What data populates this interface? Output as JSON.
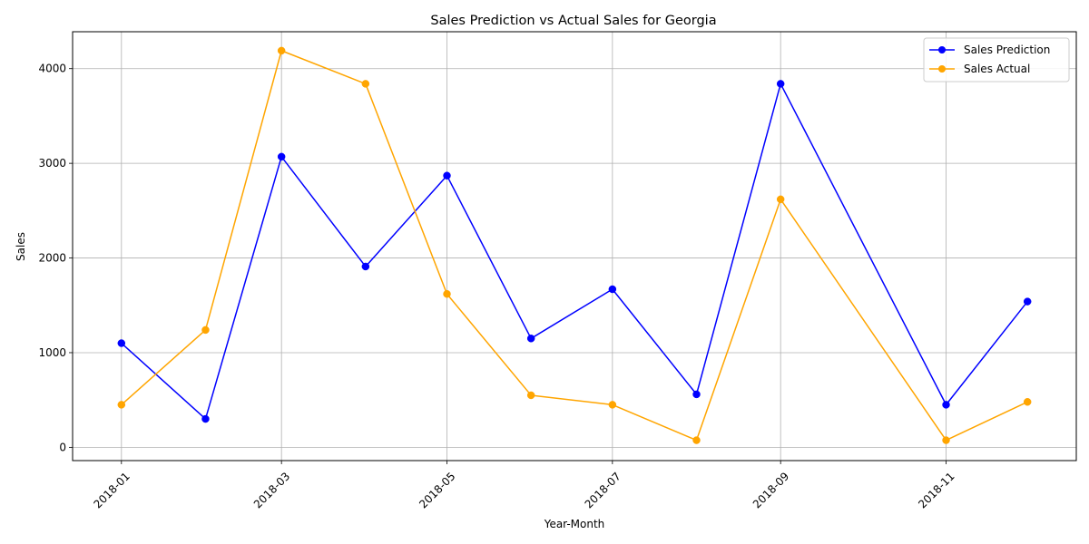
{
  "chart_data": {
    "type": "line",
    "title": "Sales Prediction vs Actual Sales for Georgia",
    "xlabel": "Year-Month",
    "ylabel": "Sales",
    "x": [
      "2018-01",
      "2018-02",
      "2018-03",
      "2018-04",
      "2018-05",
      "2018-06",
      "2018-07",
      "2018-08",
      "2018-09",
      "2018-11",
      "2018-12"
    ],
    "x_dates": [
      "2018-01-01",
      "2018-02-01",
      "2018-03-01",
      "2018-04-01",
      "2018-05-01",
      "2018-06-01",
      "2018-07-01",
      "2018-08-01",
      "2018-09-01",
      "2018-11-01",
      "2018-12-01"
    ],
    "x_ticks": [
      "2018-01",
      "2018-03",
      "2018-05",
      "2018-07",
      "2018-09",
      "2018-11"
    ],
    "x_tick_dates": [
      "2018-01-01",
      "2018-03-01",
      "2018-05-01",
      "2018-07-01",
      "2018-09-01",
      "2018-11-01"
    ],
    "xlim": [
      "2017-12-14",
      "2018-12-19"
    ],
    "y_ticks": [
      0,
      1000,
      2000,
      3000,
      4000
    ],
    "ylim": [
      -140,
      4390
    ],
    "grid": true,
    "legend_position": "top-right",
    "series": [
      {
        "name": "Sales Prediction",
        "color": "#0000ff",
        "values": [
          1100,
          300,
          3070,
          1910,
          2870,
          1150,
          1670,
          560,
          3840,
          450,
          1540
        ]
      },
      {
        "name": "Sales Actual",
        "color": "#ffa500",
        "values": [
          450,
          1240,
          4190,
          3840,
          1620,
          550,
          450,
          75,
          2620,
          75,
          480
        ]
      }
    ]
  }
}
